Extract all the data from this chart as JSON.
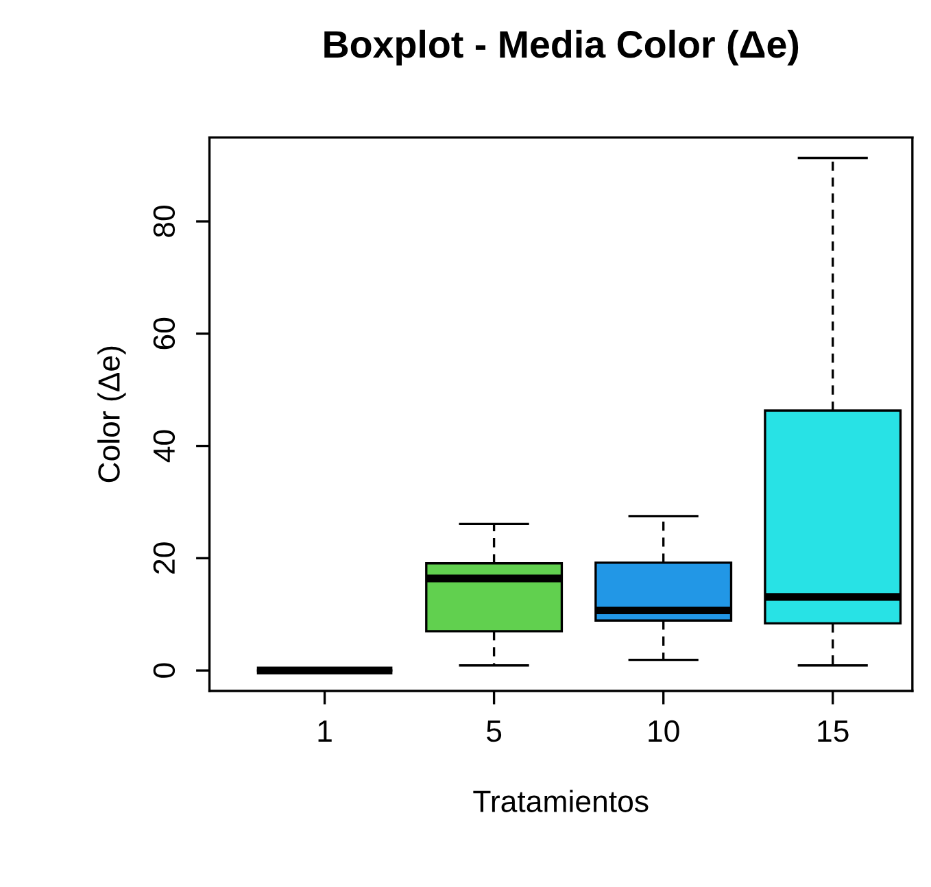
{
  "chart_data": {
    "type": "box",
    "title": "Boxplot - Media Color (Δe)",
    "xlabel": "Tratamientos",
    "ylabel": "Color (Δe)",
    "categories": [
      "1",
      "5",
      "10",
      "15"
    ],
    "colors": [
      "#000000",
      "#61d04f",
      "#2297e6",
      "#28e2e5"
    ],
    "boxes": [
      {
        "low": 0,
        "q1": 0,
        "median": 0,
        "q3": 0,
        "high": 0
      },
      {
        "low": 0.9,
        "q1": 7.0,
        "median": 16.4,
        "q3": 19.1,
        "high": 26.1
      },
      {
        "low": 1.9,
        "q1": 8.9,
        "median": 10.7,
        "q3": 19.2,
        "high": 27.5
      },
      {
        "low": 0.9,
        "q1": 8.4,
        "median": 13.1,
        "q3": 46.3,
        "high": 91.3
      }
    ],
    "ylim": [
      -3.65,
      94.95
    ],
    "yticks": [
      0,
      20,
      40,
      60,
      80
    ],
    "grid": false,
    "legend": false
  }
}
